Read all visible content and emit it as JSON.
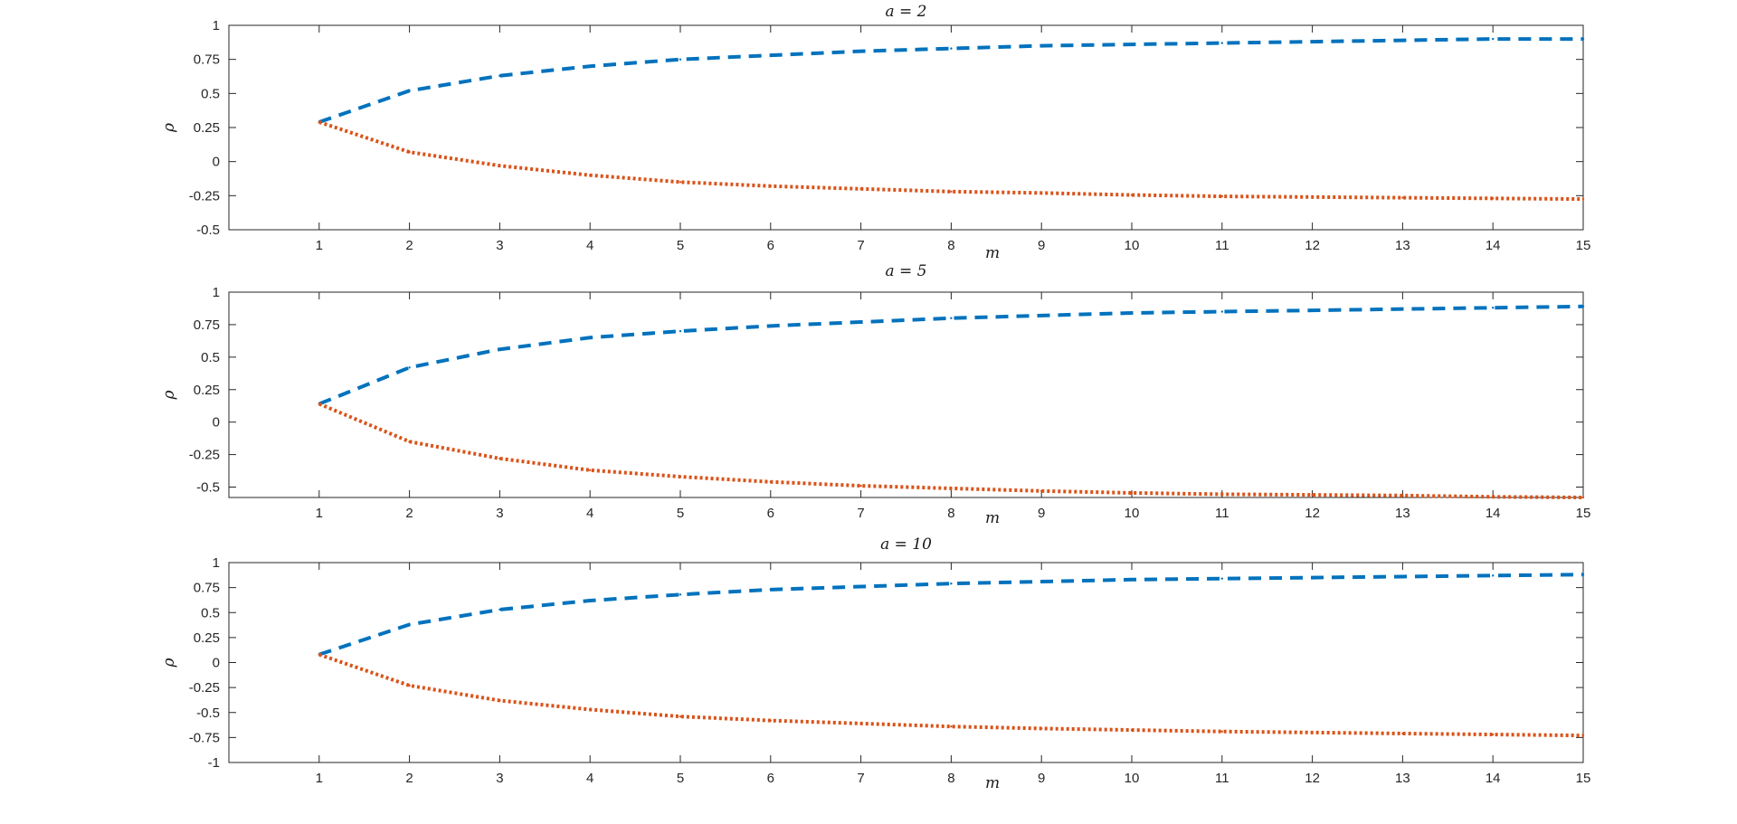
{
  "colors": {
    "upper": "#0072BD",
    "lower": "#D95319",
    "axis": "#262626"
  },
  "chart_data": [
    {
      "type": "line",
      "title": "a = 2",
      "xlabel": "m",
      "ylabel": "ρ",
      "xlim": [
        0,
        15
      ],
      "ylim": [
        -0.5,
        1
      ],
      "xticks": [
        1,
        2,
        3,
        4,
        5,
        6,
        7,
        8,
        9,
        10,
        11,
        12,
        13,
        14,
        15
      ],
      "yticks": [
        -0.5,
        -0.25,
        0,
        0.25,
        0.5,
        0.75,
        1
      ],
      "ytick_labels": [
        "-0.5",
        "-0.25",
        "0",
        "0.25",
        "0.5",
        "0.75",
        "1"
      ],
      "x": [
        1,
        2,
        3,
        4,
        5,
        6,
        7,
        8,
        9,
        10,
        11,
        12,
        13,
        14,
        15
      ],
      "series": [
        {
          "style": "dashed",
          "color": "#0072BD",
          "values": [
            0.29,
            0.52,
            0.63,
            0.7,
            0.75,
            0.78,
            0.81,
            0.83,
            0.85,
            0.86,
            0.87,
            0.88,
            0.89,
            0.9,
            0.9
          ]
        },
        {
          "style": "dotted",
          "color": "#D95319",
          "values": [
            0.29,
            0.07,
            -0.03,
            -0.1,
            -0.15,
            -0.18,
            -0.2,
            -0.22,
            -0.23,
            -0.245,
            -0.255,
            -0.26,
            -0.265,
            -0.27,
            -0.275
          ]
        }
      ]
    },
    {
      "type": "line",
      "title": "a = 5",
      "xlabel": "m",
      "ylabel": "ρ",
      "xlim": [
        0,
        15
      ],
      "ylim": [
        -0.58,
        1
      ],
      "xticks": [
        1,
        2,
        3,
        4,
        5,
        6,
        7,
        8,
        9,
        10,
        11,
        12,
        13,
        14,
        15
      ],
      "yticks": [
        -0.5,
        -0.25,
        0,
        0.25,
        0.5,
        0.75,
        1
      ],
      "ytick_labels": [
        "-0.5",
        "-0.25",
        "0",
        "0.25",
        "0.5",
        "0.75",
        "1"
      ],
      "x": [
        1,
        2,
        3,
        4,
        5,
        6,
        7,
        8,
        9,
        10,
        11,
        12,
        13,
        14,
        15
      ],
      "series": [
        {
          "style": "dashed",
          "color": "#0072BD",
          "values": [
            0.14,
            0.42,
            0.56,
            0.65,
            0.7,
            0.74,
            0.77,
            0.8,
            0.82,
            0.84,
            0.85,
            0.86,
            0.87,
            0.88,
            0.89
          ]
        },
        {
          "style": "dotted",
          "color": "#D95319",
          "values": [
            0.14,
            -0.15,
            -0.28,
            -0.37,
            -0.42,
            -0.46,
            -0.49,
            -0.51,
            -0.53,
            -0.545,
            -0.555,
            -0.56,
            -0.565,
            -0.575,
            -0.58
          ]
        }
      ]
    },
    {
      "type": "line",
      "title": "a = 10",
      "xlabel": "m",
      "ylabel": "ρ",
      "xlim": [
        0,
        15
      ],
      "ylim": [
        -1,
        1
      ],
      "xticks": [
        1,
        2,
        3,
        4,
        5,
        6,
        7,
        8,
        9,
        10,
        11,
        12,
        13,
        14,
        15
      ],
      "yticks": [
        -1,
        -0.75,
        -0.5,
        -0.25,
        0,
        0.25,
        0.5,
        0.75,
        1
      ],
      "ytick_labels": [
        "-1",
        "-0.75",
        "-0.5",
        "-0.25",
        "0",
        "0.25",
        "0.5",
        "0.75",
        "1"
      ],
      "x": [
        1,
        2,
        3,
        4,
        5,
        6,
        7,
        8,
        9,
        10,
        11,
        12,
        13,
        14,
        15
      ],
      "series": [
        {
          "style": "dashed",
          "color": "#0072BD",
          "values": [
            0.08,
            0.38,
            0.53,
            0.62,
            0.68,
            0.73,
            0.76,
            0.79,
            0.81,
            0.83,
            0.84,
            0.85,
            0.86,
            0.87,
            0.88
          ]
        },
        {
          "style": "dotted",
          "color": "#D95319",
          "values": [
            0.08,
            -0.23,
            -0.38,
            -0.47,
            -0.54,
            -0.58,
            -0.61,
            -0.64,
            -0.66,
            -0.675,
            -0.69,
            -0.7,
            -0.71,
            -0.72,
            -0.73
          ]
        }
      ]
    }
  ]
}
